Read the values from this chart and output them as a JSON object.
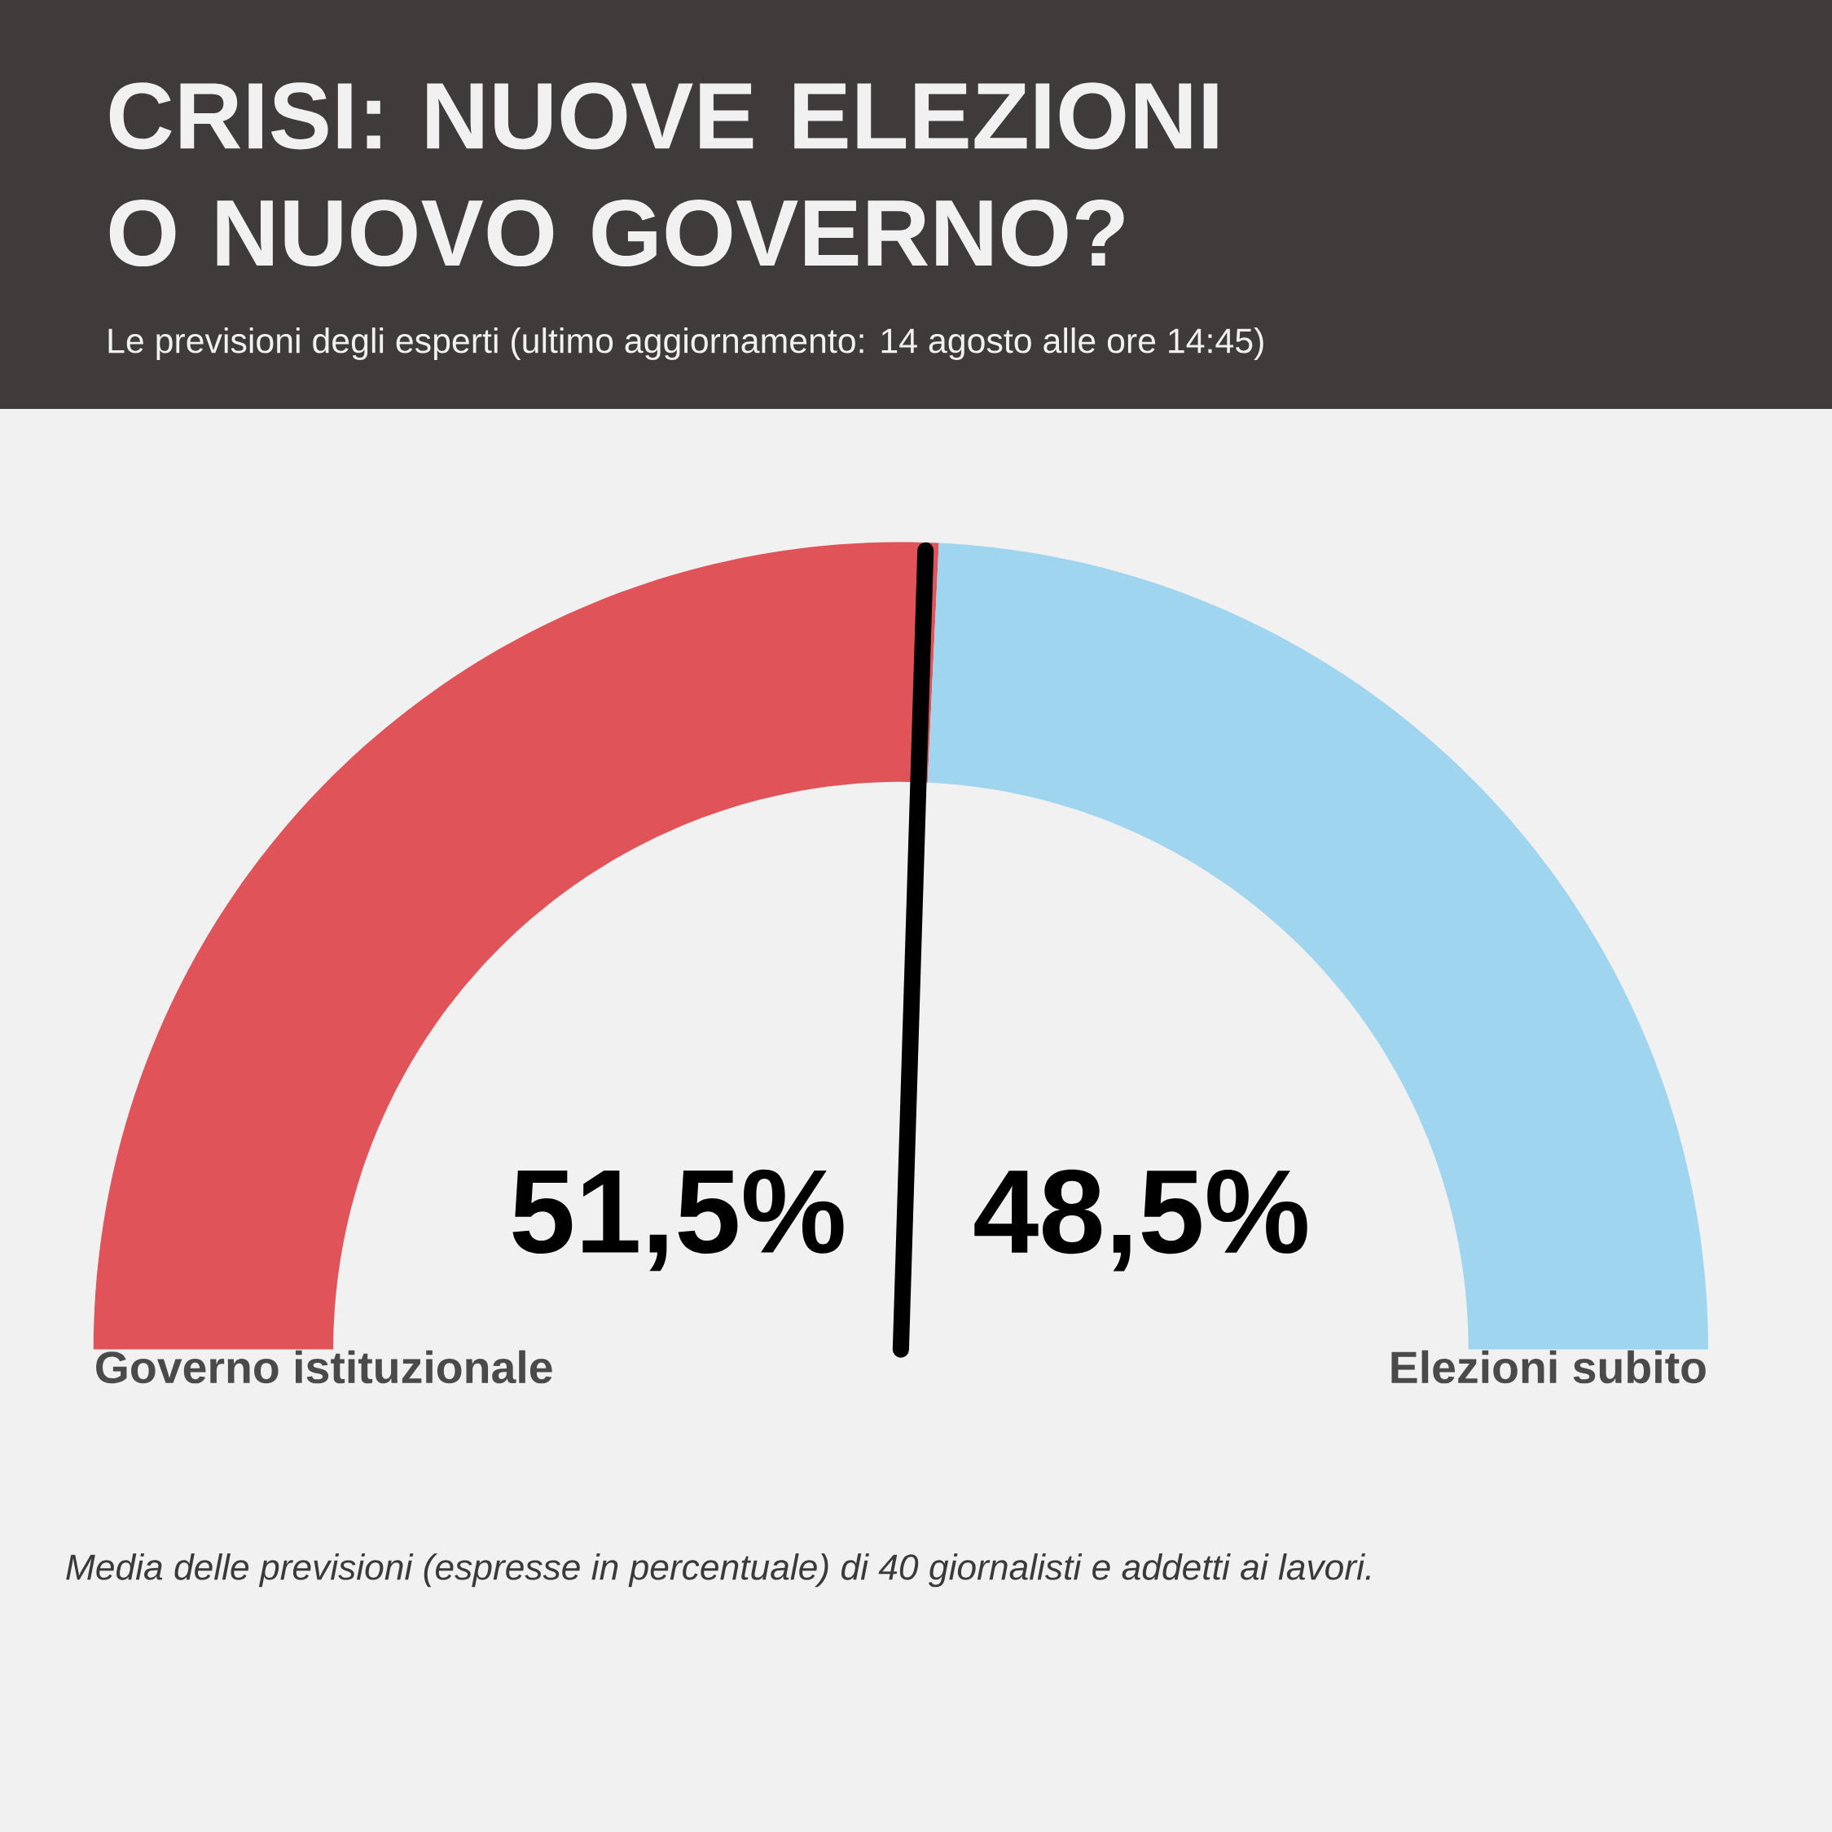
{
  "chart_data": {
    "type": "donut",
    "title": "CRISI: NUOVE ELEZIONI O NUOVO GOVERNO?",
    "subtitle": "Le previsioni degli esperti (ultimo aggiornamento: 14 agosto alle ore 14:45)",
    "categories": [
      "Governo istituzionale",
      "Elezioni subito"
    ],
    "values": [
      51.5,
      48.5
    ],
    "colors": [
      "#df5359",
      "#a0d5f0"
    ],
    "value_labels": [
      "51,5%",
      "48,5%"
    ],
    "needle": "Governo istituzionale",
    "annotations": [
      "Media delle previsioni (espresse in percentuale) di 40 giornalisti e addetti ai lavori."
    ]
  }
}
